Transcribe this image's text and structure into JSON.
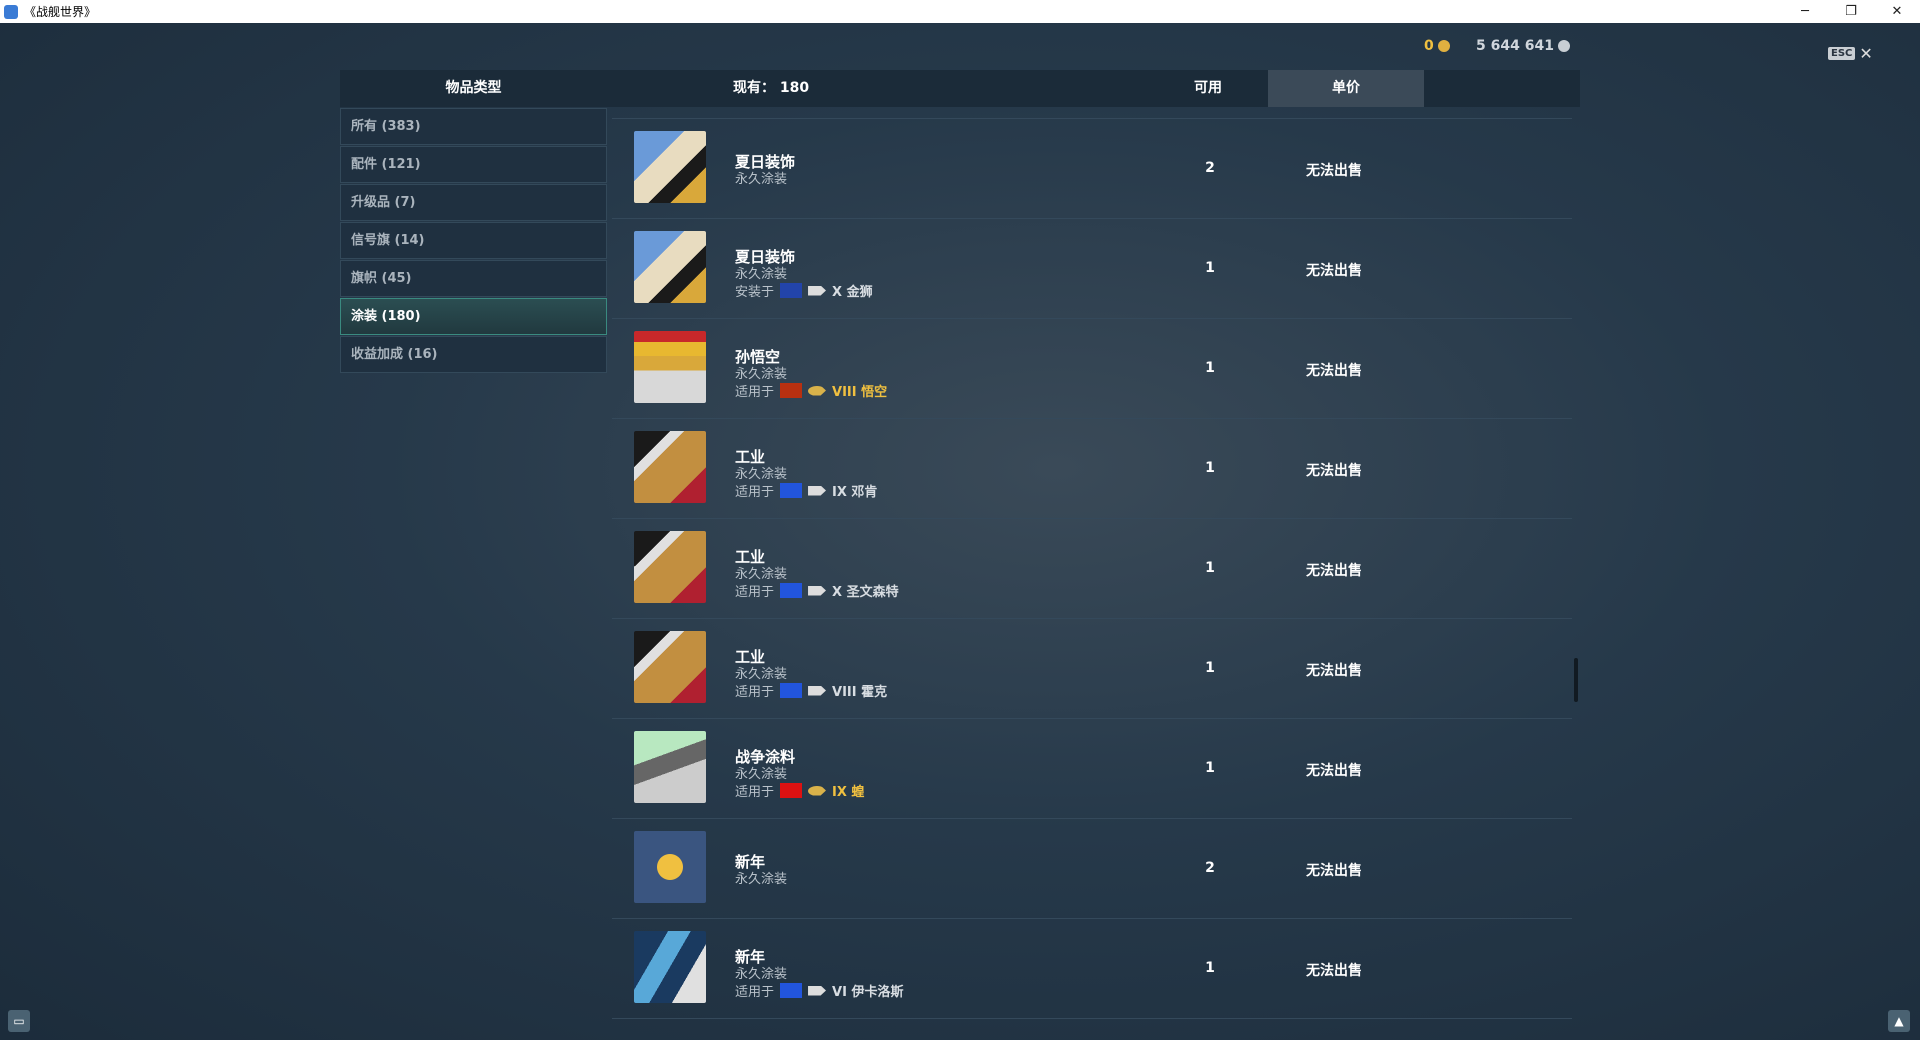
{
  "window": {
    "title": "《战舰世界》",
    "buttons": [
      "─",
      "❐",
      "✕"
    ]
  },
  "currency": {
    "gold": "0",
    "silver": "5 644 641",
    "gold_color": "#f0c040",
    "silver_color": "#d0d6dc"
  },
  "esc": {
    "key": "ESC",
    "close": "✕"
  },
  "header": {
    "category": "物品类型",
    "owned": "现有： 180",
    "available": "可用",
    "price": "单价"
  },
  "sidebar": {
    "items": [
      {
        "label": "所有 (383)",
        "selected": false
      },
      {
        "label": "配件 (121)",
        "selected": false
      },
      {
        "label": "升级品 (7)",
        "selected": false
      },
      {
        "label": "信号旗 (14)",
        "selected": false
      },
      {
        "label": "旗帜 (45)",
        "selected": false
      },
      {
        "label": "涂装 (180)",
        "selected": true
      },
      {
        "label": "收益加成 (16)",
        "selected": false
      }
    ]
  },
  "rows": [
    {
      "name": "夏日装饰",
      "sub": "永久涂装",
      "qty": "2",
      "price": "无法出售",
      "thumb": "summer",
      "label": "",
      "flag": "",
      "ship": ""
    },
    {
      "name": "夏日装饰",
      "sub": "永久涂装",
      "qty": "1",
      "price": "无法出售",
      "thumb": "summer",
      "label": "安装于",
      "flag": "pan-america",
      "ship": "X 金狮",
      "gold": false
    },
    {
      "name": "孙悟空",
      "sub": "永久涂装",
      "qty": "1",
      "price": "无法出售",
      "thumb": "wukong",
      "label": "适用于",
      "flag": "pan-asia",
      "ship": "VIII 悟空",
      "gold": true
    },
    {
      "name": "工业",
      "sub": "永久涂装",
      "qty": "1",
      "price": "无法出售",
      "thumb": "industry",
      "label": "适用于",
      "flag": "europe",
      "ship": "IX 邓肯",
      "gold": false
    },
    {
      "name": "工业",
      "sub": "永久涂装",
      "qty": "1",
      "price": "无法出售",
      "thumb": "industry",
      "label": "适用于",
      "flag": "europe",
      "ship": "X 圣文森特",
      "gold": false
    },
    {
      "name": "工业",
      "sub": "永久涂装",
      "qty": "1",
      "price": "无法出售",
      "thumb": "industry",
      "label": "适用于",
      "flag": "europe",
      "ship": "VIII 霍克",
      "gold": false
    },
    {
      "name": "战争涂料",
      "sub": "永久涂装",
      "qty": "1",
      "price": "无法出售",
      "thumb": "war",
      "label": "适用于",
      "flag": "swiss",
      "ship": "IX 蝗",
      "gold": true
    },
    {
      "name": "新年",
      "sub": "永久涂装",
      "qty": "2",
      "price": "无法出售",
      "thumb": "newyear",
      "label": "",
      "flag": "",
      "ship": ""
    },
    {
      "name": "新年",
      "sub": "永久涂装",
      "qty": "1",
      "price": "无法出售",
      "thumb": "newyear2",
      "label": "适用于",
      "flag": "europe",
      "ship": "VI 伊卡洛斯",
      "gold": false
    }
  ]
}
